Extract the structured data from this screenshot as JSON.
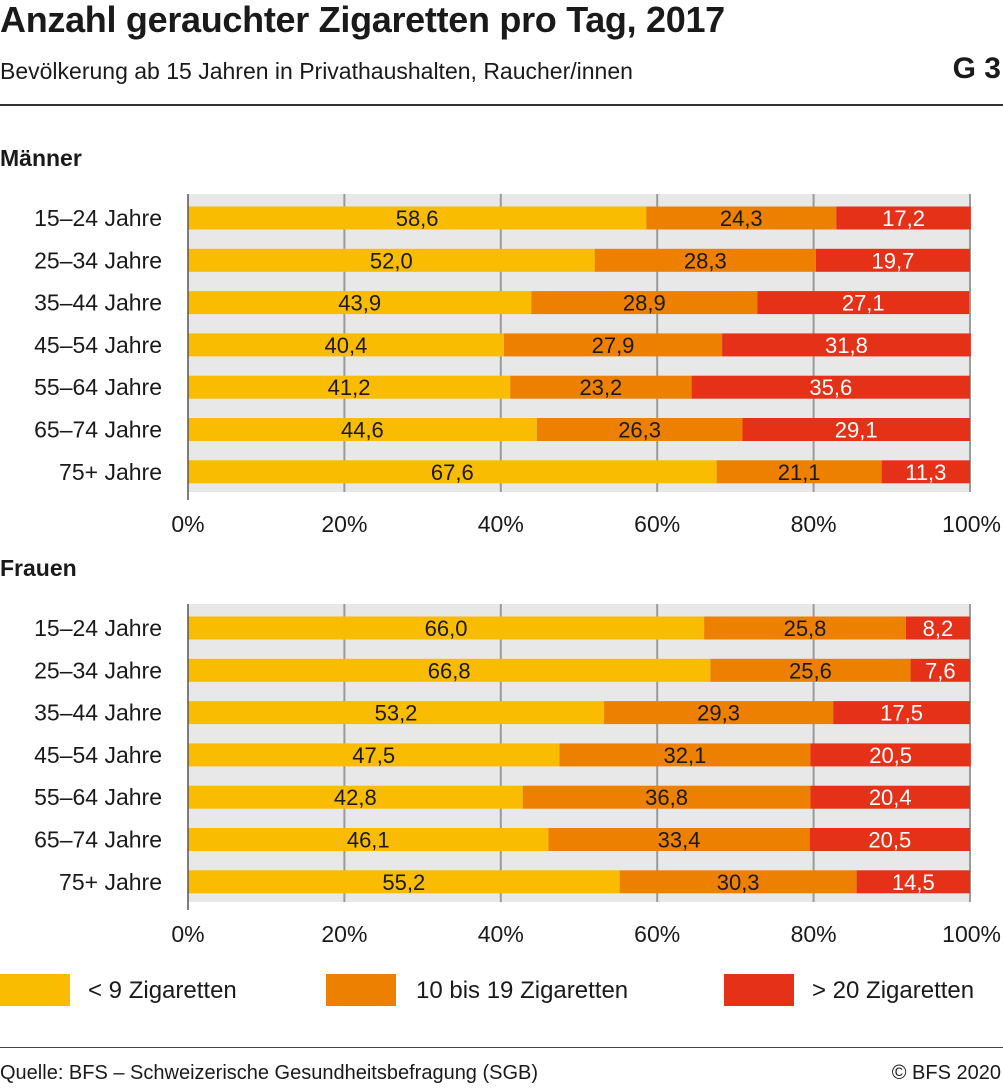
{
  "header": {
    "title": "Anzahl gerauchter Zigaretten pro Tag, 2017",
    "subtitle": "Bevölkerung ab 15 Jahren in Privathaushalten, Raucher/innen",
    "code": "G 3"
  },
  "footer": {
    "source": "Quelle: BFS – Schweizerische Gesundheitsbefragung (SGB)",
    "copyright": "© BFS 2020"
  },
  "colors": {
    "series": [
      "#F9BC00",
      "#EE8000",
      "#E63119"
    ],
    "plot_background": "#E8E8E8",
    "gridline": "#9A9A9A",
    "value_text_dark": "#1a1a1a",
    "value_text_light": "#ffffff"
  },
  "legend": [
    {
      "label": "< 9 Zigaretten"
    },
    {
      "label": "10 bis 19 Zigaretten"
    },
    {
      "label": "> 20 Zigaretten"
    }
  ],
  "chart_data": [
    {
      "type": "bar",
      "orientation": "horizontal",
      "stacked": true,
      "title": "Männer",
      "categories": [
        "15–24 Jahre",
        "25–34 Jahre",
        "35–44 Jahre",
        "45–54 Jahre",
        "55–64 Jahre",
        "65–74 Jahre",
        "75+ Jahre"
      ],
      "series": [
        {
          "name": "< 9 Zigaretten",
          "values": [
            58.6,
            52.0,
            43.9,
            40.4,
            41.2,
            44.6,
            67.6
          ],
          "labels": [
            "58,6",
            "52,0",
            "43,9",
            "40,4",
            "41,2",
            "44,6",
            "67,6"
          ]
        },
        {
          "name": "10 bis 19 Zigaretten",
          "values": [
            24.3,
            28.3,
            28.9,
            27.9,
            23.2,
            26.3,
            21.1
          ],
          "labels": [
            "24,3",
            "28,3",
            "28,9",
            "27,9",
            "23,2",
            "26,3",
            "21,1"
          ]
        },
        {
          "name": "> 20 Zigaretten",
          "values": [
            17.2,
            19.7,
            27.1,
            31.8,
            35.6,
            29.1,
            11.3
          ],
          "labels": [
            "17,2",
            "19,7",
            "27,1",
            "31,8",
            "35,6",
            "29,1",
            "11,3"
          ]
        }
      ],
      "xlim": [
        0,
        100
      ],
      "xticks": [
        "0%",
        "20%",
        "40%",
        "60%",
        "80%",
        "100%"
      ],
      "grid": true
    },
    {
      "type": "bar",
      "orientation": "horizontal",
      "stacked": true,
      "title": "Frauen",
      "categories": [
        "15–24 Jahre",
        "25–34 Jahre",
        "35–44 Jahre",
        "45–54 Jahre",
        "55–64 Jahre",
        "65–74 Jahre",
        "75+ Jahre"
      ],
      "series": [
        {
          "name": "< 9 Zigaretten",
          "values": [
            66.0,
            66.8,
            53.2,
            47.5,
            42.8,
            46.1,
            55.2
          ],
          "labels": [
            "66,0",
            "66,8",
            "53,2",
            "47,5",
            "42,8",
            "46,1",
            "55,2"
          ]
        },
        {
          "name": "10 bis 19 Zigaretten",
          "values": [
            25.8,
            25.6,
            29.3,
            32.1,
            36.8,
            33.4,
            30.3
          ],
          "labels": [
            "25,8",
            "25,6",
            "29,3",
            "32,1",
            "36,8",
            "33,4",
            "30,3"
          ]
        },
        {
          "name": "> 20 Zigaretten",
          "values": [
            8.2,
            7.6,
            17.5,
            20.5,
            20.4,
            20.5,
            14.5
          ],
          "labels": [
            "8,2",
            "7,6",
            "17,5",
            "20,5",
            "20,4",
            "20,5",
            "14,5"
          ]
        }
      ],
      "xlim": [
        0,
        100
      ],
      "xticks": [
        "0%",
        "20%",
        "40%",
        "60%",
        "80%",
        "100%"
      ],
      "grid": true
    }
  ]
}
